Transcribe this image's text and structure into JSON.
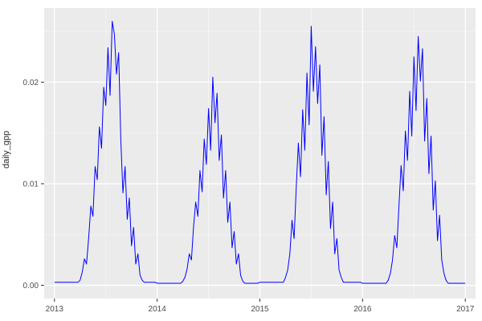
{
  "figure": {
    "colors": {
      "panel_bg": "#EBEBEB",
      "grid_major": "#FFFFFF",
      "grid_minor": "#FFFFFF",
      "tick_mark": "#333333",
      "tick_text": "#4D4D4D",
      "line": "#0000FF"
    }
  },
  "chart_data": {
    "type": "line",
    "title": "",
    "xlabel": "",
    "ylabel": "daily_gpp",
    "theme": "ggplot-gray",
    "grid": true,
    "legend": false,
    "xlim": [
      2012.9,
      2017.1
    ],
    "ylim": [
      -0.0013,
      0.0273
    ],
    "x_ticks": [
      2013,
      2014,
      2015,
      2016,
      2017
    ],
    "x_tick_labels": [
      "2013",
      "2014",
      "2015",
      "2016",
      "2017"
    ],
    "y_ticks": [
      0.0,
      0.01,
      0.02
    ],
    "y_tick_labels": [
      "0.00",
      "0.01",
      "0.02"
    ],
    "x_minor_ticks": [
      2013.5,
      2014.5,
      2015.5,
      2016.5
    ],
    "y_minor_ticks": [
      0.005,
      0.015,
      0.025
    ],
    "series": [
      {
        "name": "daily_gpp",
        "color": "#0000FF",
        "x_start": 2013,
        "x_step": 0.0208333,
        "y": [
          0.0003,
          0.0003,
          0.0003,
          0.0003,
          0.0003,
          0.0003,
          0.0003,
          0.0003,
          0.0003,
          0.0003,
          0.0003,
          0.0003,
          0.0005,
          0.0013,
          0.0026,
          0.0021,
          0.0047,
          0.0078,
          0.0068,
          0.0117,
          0.0104,
          0.0156,
          0.0135,
          0.0195,
          0.0177,
          0.0234,
          0.0187,
          0.026,
          0.0247,
          0.0208,
          0.0229,
          0.0143,
          0.0091,
          0.0117,
          0.0065,
          0.0086,
          0.0039,
          0.0057,
          0.0021,
          0.0031,
          0.001,
          0.0005,
          0.0003,
          0.0003,
          0.0003,
          0.0003,
          0.0003,
          0.0003,
          0.0002,
          0.0002,
          0.0002,
          0.0002,
          0.0002,
          0.0002,
          0.0002,
          0.0002,
          0.0002,
          0.0002,
          0.0002,
          0.0002,
          0.0004,
          0.0008,
          0.0016,
          0.0031,
          0.0025,
          0.0057,
          0.0082,
          0.0068,
          0.0113,
          0.0092,
          0.0144,
          0.0119,
          0.0174,
          0.0133,
          0.0205,
          0.016,
          0.0189,
          0.0123,
          0.0148,
          0.0086,
          0.0113,
          0.0062,
          0.0082,
          0.0037,
          0.0053,
          0.0021,
          0.0031,
          0.001,
          0.0004,
          0.0002,
          0.0002,
          0.0002,
          0.0002,
          0.0002,
          0.0002,
          0.0002,
          0.0003,
          0.0003,
          0.0003,
          0.0003,
          0.0003,
          0.0003,
          0.0003,
          0.0003,
          0.0003,
          0.0003,
          0.0003,
          0.0003,
          0.0008,
          0.0015,
          0.0031,
          0.0064,
          0.0046,
          0.0097,
          0.014,
          0.0107,
          0.0173,
          0.0133,
          0.0209,
          0.0158,
          0.0255,
          0.0191,
          0.0235,
          0.0179,
          0.0217,
          0.0128,
          0.0166,
          0.0089,
          0.0122,
          0.0056,
          0.0082,
          0.0031,
          0.0046,
          0.0015,
          0.0008,
          0.0003,
          0.0003,
          0.0003,
          0.0003,
          0.0003,
          0.0003,
          0.0003,
          0.0003,
          0.0003,
          0.0002,
          0.0002,
          0.0002,
          0.0002,
          0.0002,
          0.0002,
          0.0002,
          0.0002,
          0.0002,
          0.0002,
          0.0002,
          0.0002,
          0.0005,
          0.0012,
          0.0025,
          0.0049,
          0.0037,
          0.0078,
          0.0118,
          0.0093,
          0.0152,
          0.0123,
          0.0191,
          0.0147,
          0.0225,
          0.0172,
          0.0245,
          0.0201,
          0.0233,
          0.0142,
          0.0184,
          0.011,
          0.0147,
          0.0074,
          0.0103,
          0.0044,
          0.0069,
          0.0025,
          0.0012,
          0.0005,
          0.0002,
          0.0002,
          0.0002,
          0.0002,
          0.0002,
          0.0002,
          0.0002,
          0.0002,
          0.0002
        ]
      }
    ]
  }
}
